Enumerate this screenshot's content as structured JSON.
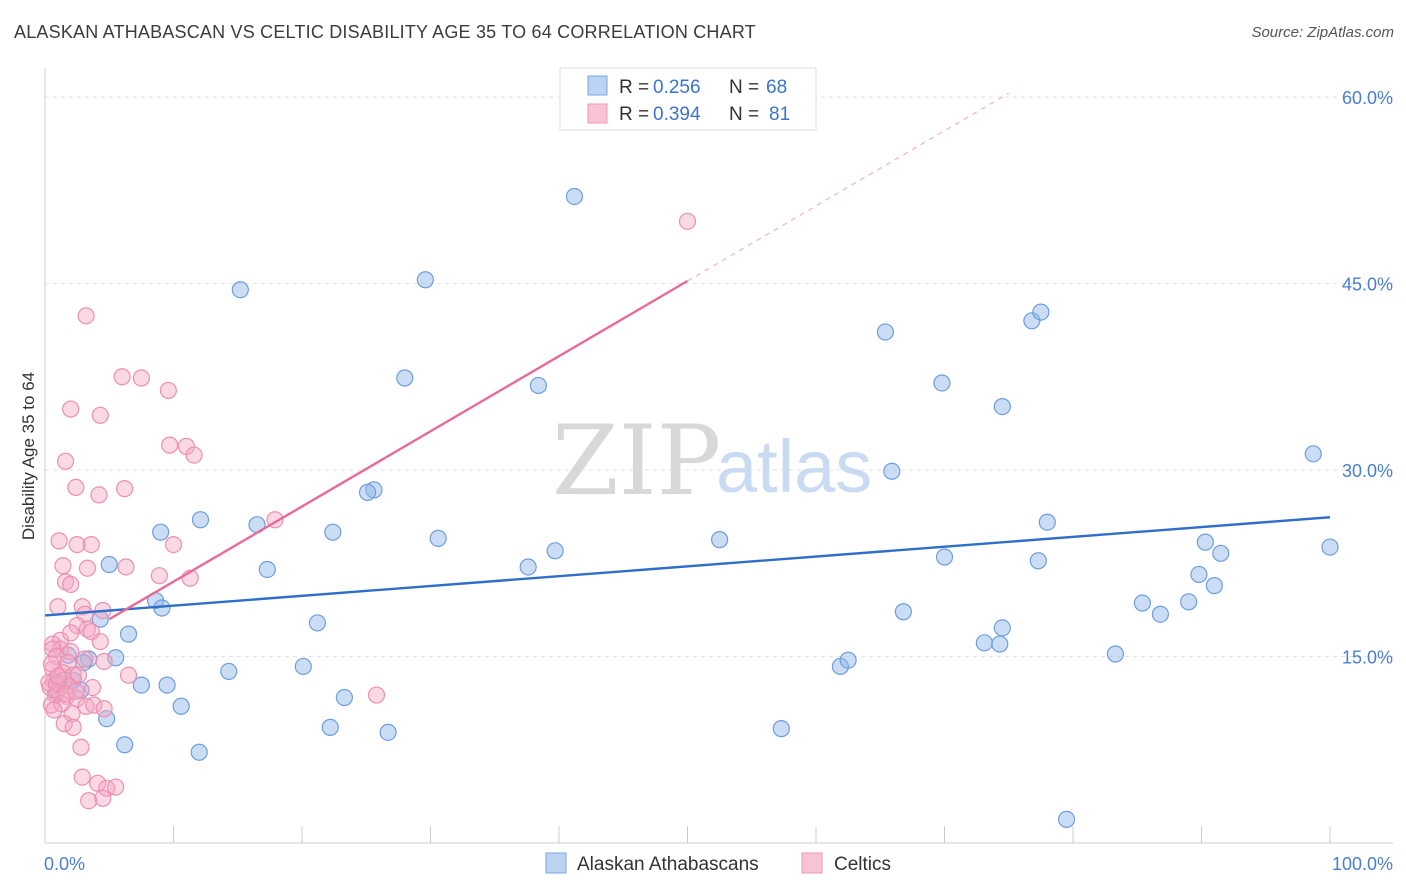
{
  "title": "ALASKAN ATHABASCAN VS CELTIC DISABILITY AGE 35 TO 64 CORRELATION CHART",
  "source": "Source: ZipAtlas.com",
  "watermark": {
    "zip": "ZIP",
    "atlas": "atlas"
  },
  "legend": {
    "rows": [
      {
        "r_label": "R =",
        "r_value": "0.256",
        "n_label": "N =",
        "n_value": "68"
      },
      {
        "r_label": "R =",
        "r_value": "0.394",
        "n_label": "N =",
        "n_value": "81"
      }
    ]
  },
  "bottom_legend": [
    "Alaskan Athabascans",
    "Celtics"
  ],
  "chart_data": {
    "type": "scatter",
    "title": "ALASKAN ATHABASCAN VS CELTIC DISABILITY AGE 35 TO 64 CORRELATION CHART",
    "xlabel": "",
    "ylabel": "Disability Age 35 to 64",
    "xlim": [
      0,
      100
    ],
    "ylim": [
      0,
      60
    ],
    "x_tick_labels": [
      "0.0%",
      "100.0%"
    ],
    "y_ticks": [
      15,
      30,
      45,
      60
    ],
    "y_tick_labels": [
      "15.0%",
      "30.0%",
      "45.0%",
      "60.0%"
    ],
    "grid": "horizontal dashed",
    "legend_position": "top-center",
    "series": [
      {
        "name": "Alaskan Athabascans",
        "color": "#8ab4e8",
        "stroke": "#6e9ede",
        "line_color": "#2f6fc9",
        "trend": {
          "x": [
            0,
            100
          ],
          "y": [
            18.3,
            26.2
          ]
        },
        "points": [
          [
            41.2,
            52.0
          ],
          [
            15.2,
            44.5
          ],
          [
            29.6,
            45.3
          ],
          [
            28.0,
            37.4
          ],
          [
            38.4,
            36.8
          ],
          [
            65.4,
            41.1
          ],
          [
            76.8,
            42.0
          ],
          [
            77.5,
            42.7
          ],
          [
            69.8,
            37.0
          ],
          [
            74.5,
            35.1
          ],
          [
            98.7,
            31.3
          ],
          [
            65.9,
            29.9
          ],
          [
            25.6,
            28.4
          ],
          [
            25.1,
            28.2
          ],
          [
            9.0,
            25.0
          ],
          [
            12.1,
            26.0
          ],
          [
            16.5,
            25.6
          ],
          [
            22.4,
            25.0
          ],
          [
            30.6,
            24.5
          ],
          [
            52.5,
            24.4
          ],
          [
            78.0,
            25.8
          ],
          [
            100.0,
            23.8
          ],
          [
            90.3,
            24.2
          ],
          [
            91.5,
            23.3
          ],
          [
            5.0,
            22.4
          ],
          [
            17.3,
            22.0
          ],
          [
            37.6,
            22.2
          ],
          [
            39.7,
            23.5
          ],
          [
            70.0,
            23.0
          ],
          [
            77.3,
            22.7
          ],
          [
            89.8,
            21.6
          ],
          [
            91.0,
            20.7
          ],
          [
            8.6,
            19.5
          ],
          [
            9.1,
            18.9
          ],
          [
            4.3,
            18.0
          ],
          [
            21.2,
            17.7
          ],
          [
            66.8,
            18.6
          ],
          [
            85.4,
            19.3
          ],
          [
            86.8,
            18.4
          ],
          [
            89.0,
            19.4
          ],
          [
            6.5,
            16.8
          ],
          [
            73.1,
            16.1
          ],
          [
            74.5,
            17.3
          ],
          [
            74.3,
            16.0
          ],
          [
            83.3,
            15.2
          ],
          [
            1.8,
            15.1
          ],
          [
            3.4,
            14.8
          ],
          [
            5.5,
            14.9
          ],
          [
            14.3,
            13.8
          ],
          [
            20.1,
            14.2
          ],
          [
            61.9,
            14.2
          ],
          [
            62.5,
            14.7
          ],
          [
            7.5,
            12.7
          ],
          [
            9.5,
            12.7
          ],
          [
            23.3,
            11.7
          ],
          [
            10.6,
            11.0
          ],
          [
            4.8,
            10.0
          ],
          [
            22.2,
            9.3
          ],
          [
            26.7,
            8.9
          ],
          [
            57.3,
            9.2
          ],
          [
            6.2,
            7.9
          ],
          [
            12.0,
            7.3
          ],
          [
            79.5,
            1.9
          ],
          [
            1.1,
            12.9
          ],
          [
            2.2,
            13.1
          ],
          [
            3.0,
            14.5
          ],
          [
            2.8,
            12.3
          ],
          [
            0.9,
            12.1
          ]
        ]
      },
      {
        "name": "Celtics",
        "color": "#f4a9c3",
        "stroke": "#ec8fb0",
        "line_color": "#e86a99",
        "trend": {
          "x": [
            5.0,
            50.0
          ],
          "y": [
            18.0,
            45.2
          ]
        },
        "trend_dashed": {
          "x": [
            50.0,
            75.0
          ],
          "y": [
            45.2,
            60.3
          ]
        },
        "points": [
          [
            50.0,
            50.0
          ],
          [
            3.2,
            42.4
          ],
          [
            6.0,
            37.5
          ],
          [
            7.5,
            37.4
          ],
          [
            9.6,
            36.4
          ],
          [
            2.0,
            34.9
          ],
          [
            4.3,
            34.4
          ],
          [
            9.7,
            32.0
          ],
          [
            11.0,
            31.9
          ],
          [
            11.6,
            31.2
          ],
          [
            1.6,
            30.7
          ],
          [
            2.4,
            28.6
          ],
          [
            4.2,
            28.0
          ],
          [
            6.2,
            28.5
          ],
          [
            17.9,
            26.0
          ],
          [
            1.1,
            24.3
          ],
          [
            2.5,
            24.0
          ],
          [
            3.6,
            24.0
          ],
          [
            10.0,
            24.0
          ],
          [
            1.4,
            22.3
          ],
          [
            3.3,
            22.1
          ],
          [
            6.3,
            22.2
          ],
          [
            11.3,
            21.3
          ],
          [
            8.9,
            21.5
          ],
          [
            1.6,
            21.0
          ],
          [
            2.0,
            20.8
          ],
          [
            1.0,
            19.0
          ],
          [
            2.9,
            19.0
          ],
          [
            3.1,
            18.4
          ],
          [
            4.5,
            18.7
          ],
          [
            2.5,
            17.5
          ],
          [
            3.3,
            17.2
          ],
          [
            1.2,
            16.3
          ],
          [
            0.6,
            16.0
          ],
          [
            4.3,
            16.2
          ],
          [
            1.2,
            15.6
          ],
          [
            0.6,
            15.6
          ],
          [
            2.0,
            15.4
          ],
          [
            0.9,
            15.0
          ],
          [
            1.8,
            14.5
          ],
          [
            3.1,
            14.8
          ],
          [
            4.6,
            14.6
          ],
          [
            0.6,
            14.0
          ],
          [
            1.4,
            13.7
          ],
          [
            2.2,
            13.5
          ],
          [
            0.7,
            13.0
          ],
          [
            1.5,
            13.1
          ],
          [
            2.6,
            13.5
          ],
          [
            6.5,
            13.5
          ],
          [
            0.4,
            12.5
          ],
          [
            1.0,
            12.3
          ],
          [
            1.9,
            12.6
          ],
          [
            0.8,
            11.9
          ],
          [
            1.7,
            11.8
          ],
          [
            2.5,
            11.6
          ],
          [
            0.5,
            11.1
          ],
          [
            1.3,
            11.2
          ],
          [
            3.2,
            11.0
          ],
          [
            3.8,
            11.1
          ],
          [
            4.6,
            10.8
          ],
          [
            0.7,
            10.7
          ],
          [
            2.1,
            10.4
          ],
          [
            1.5,
            9.6
          ],
          [
            2.2,
            9.3
          ],
          [
            2.8,
            7.7
          ],
          [
            25.8,
            11.9
          ],
          [
            2.9,
            5.3
          ],
          [
            4.1,
            4.8
          ],
          [
            4.8,
            4.4
          ],
          [
            5.5,
            4.5
          ],
          [
            3.4,
            3.4
          ],
          [
            4.5,
            3.6
          ],
          [
            0.3,
            12.9
          ],
          [
            0.9,
            12.8
          ],
          [
            1.6,
            12.0
          ],
          [
            2.4,
            12.2
          ],
          [
            3.7,
            12.5
          ],
          [
            0.5,
            14.4
          ],
          [
            2.0,
            16.9
          ],
          [
            3.6,
            17.0
          ],
          [
            1.0,
            13.4
          ]
        ]
      }
    ]
  }
}
